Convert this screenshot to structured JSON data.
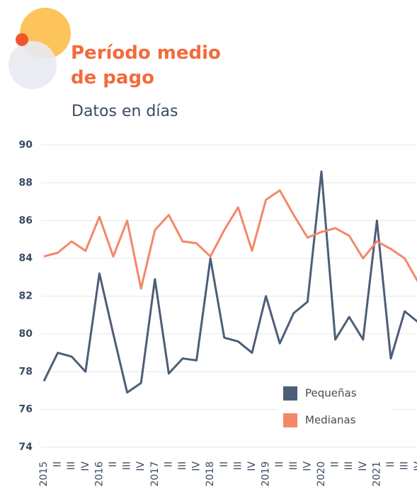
{
  "chart_data": {
    "type": "line",
    "title": "Período medio de pago",
    "subtitle": "Datos en días",
    "categories": [
      "2015",
      "II",
      "III",
      "IV",
      "2016",
      "II",
      "III",
      "IV",
      "2017",
      "II",
      "III",
      "IV",
      "2018",
      "II",
      "III",
      "IV",
      "2019",
      "II",
      "III",
      "IV",
      "2020",
      "II",
      "III",
      "IV",
      "2021",
      "II",
      "III",
      "IV"
    ],
    "series": [
      {
        "name": "Pequeñas",
        "color": "#4d5e78",
        "values": [
          77.5,
          79.0,
          78.8,
          78.0,
          83.2,
          80.0,
          76.9,
          77.4,
          82.9,
          77.9,
          78.7,
          78.6,
          84.0,
          79.8,
          79.6,
          79.0,
          82.0,
          79.5,
          81.1,
          81.7,
          88.6,
          79.7,
          80.9,
          79.7,
          86.0,
          78.7,
          81.2,
          80.6
        ]
      },
      {
        "name": "Medianas",
        "color": "#f4876a",
        "values": [
          84.1,
          84.3,
          84.9,
          84.4,
          86.2,
          84.1,
          86.0,
          82.4,
          85.5,
          86.3,
          84.9,
          84.8,
          84.1,
          85.5,
          86.7,
          84.4,
          87.1,
          87.6,
          86.3,
          85.1,
          85.4,
          85.6,
          85.2,
          84.0,
          84.9,
          84.5,
          84.0,
          82.7
        ]
      }
    ],
    "ylim": [
      74,
      90
    ],
    "yticks": [
      74,
      76,
      78,
      80,
      82,
      84,
      86,
      88,
      90
    ],
    "grid": true
  }
}
